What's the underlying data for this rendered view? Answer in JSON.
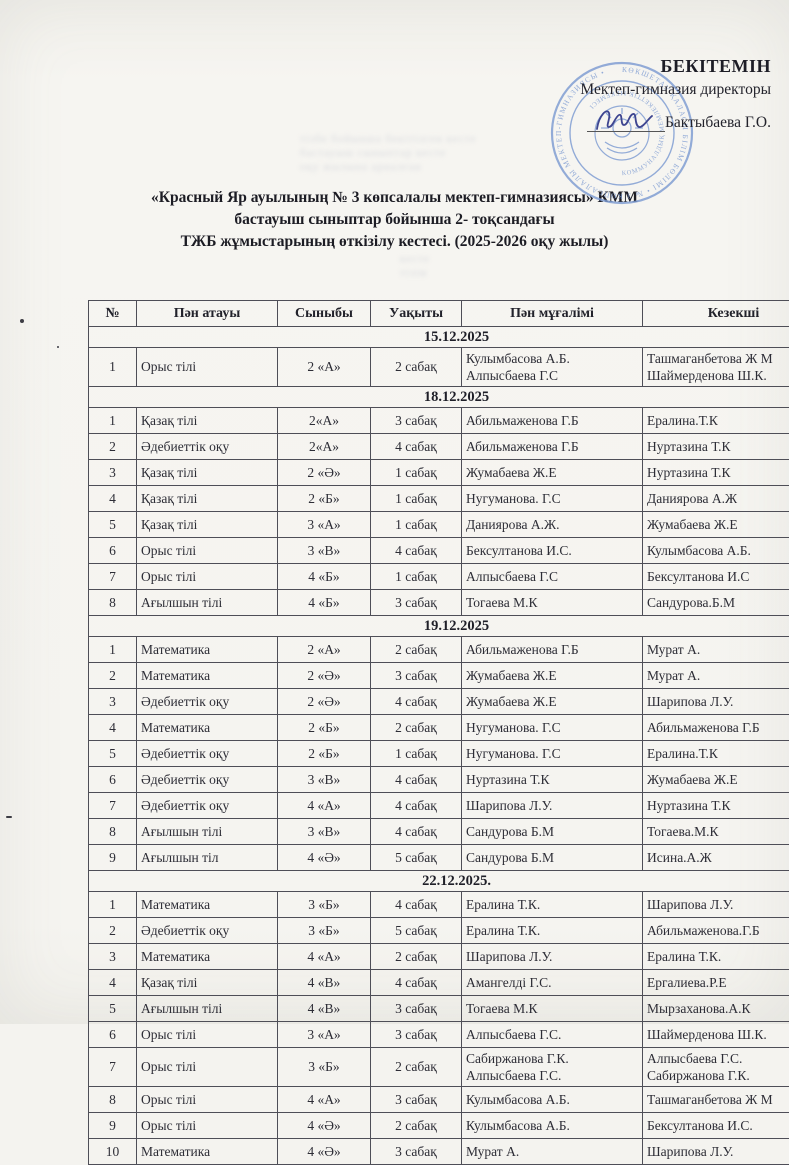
{
  "approval": {
    "title": "БЕКІТЕМІН",
    "role": "Мектеп-гимназия директоры",
    "name": "Бактыбаева Г.О."
  },
  "stamp": {
    "icon": "round-school-stamp",
    "color": "#7d9bd2",
    "text_outer": "КӨКШЕТАУ ҚАЛАСЫ БІЛІМ БӨЛІМІ • № 3 КӨПСАЛАЛЫ МЕКТЕП-ГИМНАЗИЯСЫ •",
    "text_inner": "КОММУНАЛДЫҚ МЕМЛЕКЕТТІК МЕКЕМЕСІ"
  },
  "title_lines": [
    "«Красный Яр ауылының № 3 көпсалалы мектеп-гимназиясы» КММ",
    "бастауыш сыныптар бойынша 2- тоқсандағы",
    "ТЖБ жұмыстарының өткізілу  кестесі. (2025-2026 оқу жылы)"
  ],
  "table": {
    "headers": [
      "№",
      "Пән атауы",
      "Сыныбы",
      "Уақыты",
      "Пән мұғалімі",
      "Кезекші"
    ],
    "sections": [
      {
        "date": "15.12.2025",
        "rows": [
          {
            "n": "1",
            "subject": "Орыс тілі",
            "grade": "2 «А»",
            "time": "2 сабақ",
            "teacher": [
              "Кулымбасова А.Б.",
              "Алпысбаева Г.С"
            ],
            "duty": [
              "Ташмаганбетова Ж М",
              "Шаймерденова Ш.К."
            ]
          }
        ]
      },
      {
        "date": "18.12.2025",
        "rows": [
          {
            "n": "1",
            "subject": "Қазақ тілі",
            "grade": "2«А»",
            "time": "3  сабақ",
            "teacher": [
              "Абильмаженова Г.Б"
            ],
            "duty": [
              "Ералина.Т.К"
            ]
          },
          {
            "n": "2",
            "subject": "Әдебиеттік оқу",
            "grade": "2«А»",
            "time": "4 сабақ",
            "teacher": [
              "Абильмаженова Г.Б"
            ],
            "duty": [
              "Нуртазина Т.К"
            ]
          },
          {
            "n": "3",
            "subject": "Қазақ тілі",
            "grade": "2 «Ә»",
            "time": "1  сабақ",
            "teacher": [
              "Жумабаева Ж.Е"
            ],
            "duty": [
              "Нуртазина Т.К"
            ]
          },
          {
            "n": "4",
            "subject": "Қазақ тілі",
            "grade": "2 «Б»",
            "time": "1  сабақ",
            "teacher": [
              "Нугуманова. Г.С"
            ],
            "duty": [
              "Даниярова А.Ж"
            ]
          },
          {
            "n": "5",
            "subject": "Қазақ тілі",
            "grade": "3 «А»",
            "time": "1 сабақ",
            "teacher": [
              "Даниярова А.Ж."
            ],
            "duty": [
              "Жумабаева Ж.Е"
            ]
          },
          {
            "n": "6",
            "subject": "Орыс тілі",
            "grade": "3 «В»",
            "time": "4 сабақ",
            "teacher": [
              "Бексултанова И.С."
            ],
            "duty": [
              "Кулымбасова А.Б."
            ]
          },
          {
            "n": "7",
            "subject": "Орыс тілі",
            "grade": "4 «Б»",
            "time": "1 сабақ",
            "teacher": [
              "Алпысбаева Г.С"
            ],
            "duty": [
              "Бексултанова И.С"
            ]
          },
          {
            "n": "8",
            "subject": "Ағылшын тілі",
            "grade": "4 «Б»",
            "time": "3 сабақ",
            "teacher": [
              "Тогаева М.К"
            ],
            "duty": [
              "Сандурова.Б.М"
            ]
          }
        ]
      },
      {
        "date": "19.12.2025",
        "rows": [
          {
            "n": "1",
            "subject": "Математика",
            "grade": "2 «А»",
            "time": "2 сабақ",
            "teacher": [
              "Абильмаженова Г.Б"
            ],
            "duty": [
              "Мурат А."
            ]
          },
          {
            "n": "2",
            "subject": "Математика",
            "grade": "2 «Ә»",
            "time": "3 сабақ",
            "teacher": [
              "Жумабаева Ж.Е"
            ],
            "duty": [
              "Мурат А."
            ]
          },
          {
            "n": "3",
            "subject": "Әдебиеттік оқу",
            "grade": "2 «Ә»",
            "time": "4 сабақ",
            "teacher": [
              "Жумабаева Ж.Е"
            ],
            "duty": [
              "Шарипова Л.У."
            ]
          },
          {
            "n": "4",
            "subject": "Математика",
            "grade": "2 «Б»",
            "time": "2 сабақ",
            "teacher": [
              "Нугуманова. Г.С"
            ],
            "duty": [
              "Абильмаженова Г.Б"
            ]
          },
          {
            "n": "5",
            "subject": "Әдебиеттік оқу",
            "grade": "2 «Б»",
            "time": "1 сабақ",
            "teacher": [
              "Нугуманова. Г.С"
            ],
            "duty": [
              "Ералина.Т.К"
            ]
          },
          {
            "n": "6",
            "subject": "Әдебиеттік оқу",
            "grade": "3 «В»",
            "time": "4 сабақ",
            "teacher": [
              "Нуртазина Т.К"
            ],
            "duty": [
              "Жумабаева Ж.Е"
            ]
          },
          {
            "n": "7",
            "subject": "Әдебиеттік оқу",
            "grade": "4 «А»",
            "time": "4 сабақ",
            "teacher": [
              "Шарипова Л.У."
            ],
            "duty": [
              "Нуртазина Т.К"
            ]
          },
          {
            "n": "8",
            "subject": "Ағылшын тілі",
            "grade": "3 «В»",
            "time": "4 сабақ",
            "teacher": [
              "Сандурова Б.М"
            ],
            "duty": [
              "Тогаева.М.К"
            ]
          },
          {
            "n": "9",
            "subject": "Ағылшын тіл",
            "grade": "4 «Ә»",
            "time": "5 сабақ",
            "teacher": [
              "Сандурова Б.М"
            ],
            "duty": [
              "Исина.А.Ж"
            ]
          }
        ]
      },
      {
        "date": "22.12.2025.",
        "rows": [
          {
            "n": "1",
            "subject": "Математика",
            "grade": "3 «Б»",
            "time": "4 сабақ",
            "teacher": [
              "Ералина Т.К."
            ],
            "duty": [
              "Шарипова Л.У."
            ]
          },
          {
            "n": "2",
            "subject": "Әдебиеттік оқу",
            "grade": "3 «Б»",
            "time": "5 сабақ",
            "teacher": [
              "Ералина Т.К."
            ],
            "duty": [
              "Абильмаженова.Г.Б"
            ]
          },
          {
            "n": "3",
            "subject": "Математика",
            "grade": "4 «А»",
            "time": "2  сабақ",
            "teacher": [
              "Шарипова Л.У."
            ],
            "duty": [
              "Ералина Т.К."
            ]
          },
          {
            "n": "4",
            "subject": "Қазақ тілі",
            "grade": "4 «В»",
            "time": "4 сабақ",
            "teacher": [
              "Амангелді Г.С."
            ],
            "duty": [
              "Ергалиева.Р.Е"
            ]
          },
          {
            "n": "5",
            "subject": "Ағылшын тілі",
            "grade": "4 «В»",
            "time": "3 сабақ",
            "teacher": [
              "Тогаева М.К"
            ],
            "duty": [
              "Мырзаханова.А.К"
            ]
          },
          {
            "n": "6",
            "subject": "Орыс тілі",
            "grade": "3 «А»",
            "time": "3 сабақ",
            "teacher": [
              "Алпысбаева Г.С."
            ],
            "duty": [
              "Шаймерденова Ш.К."
            ]
          },
          {
            "n": "7",
            "subject": "Орыс тілі",
            "grade": "3 «Б»",
            "time": "2 сабақ",
            "teacher": [
              "Сабиржанова Г.К.",
              "Алпысбаева Г.С."
            ],
            "duty": [
              "Алпысбаева Г.С.",
              "Сабиржанова Г.К."
            ]
          },
          {
            "n": "8",
            "subject": "Орыс тілі",
            "grade": "4 «А»",
            "time": "3 сабақ",
            "teacher": [
              "Кулымбасова А.Б."
            ],
            "duty": [
              "Ташмаганбетова Ж М"
            ]
          },
          {
            "n": "9",
            "subject": "Орыс тілі",
            "grade": "4 «Ә»",
            "time": "2 сабақ",
            "teacher": [
              "Кулымбасова А.Б."
            ],
            "duty": [
              "Бексултанова И.С."
            ]
          },
          {
            "n": "10",
            "subject": "Математика",
            "grade": "4 «Ә»",
            "time": "3  сабақ",
            "teacher": [
              "Мурат А."
            ],
            "duty": [
              "Шарипова Л.У."
            ]
          }
        ]
      }
    ]
  }
}
